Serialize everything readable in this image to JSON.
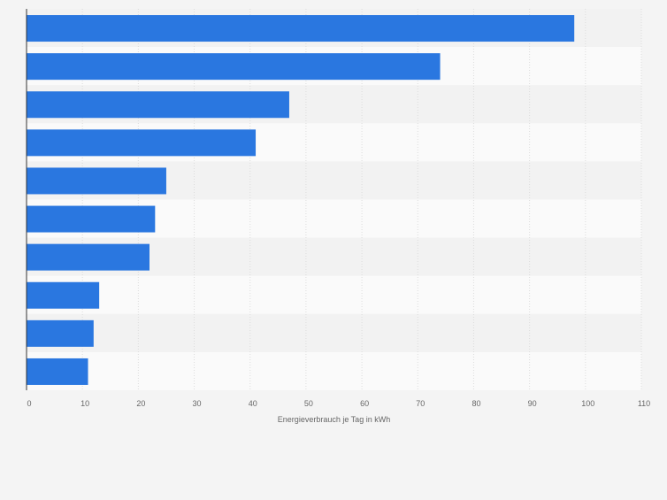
{
  "chart_data": {
    "type": "bar",
    "orientation": "horizontal",
    "categories": [
      "",
      "",
      "",
      "",
      "",
      "",
      "",
      "",
      "",
      ""
    ],
    "values": [
      98,
      74,
      47,
      41,
      25,
      23,
      22,
      13,
      12,
      11
    ],
    "xlabel": "Energieverbrauch je Tag in kWh",
    "ylabel": "",
    "xlim": [
      0,
      110
    ],
    "x_ticks": [
      "0",
      "10",
      "20",
      "30",
      "40",
      "50",
      "60",
      "70",
      "80",
      "90",
      "100",
      "110"
    ],
    "grid": true,
    "legend": "none",
    "colors": {
      "bar": "#2a77e0",
      "band_dark": "#f2f2f2",
      "band_light": "#fafafa",
      "background": "#f4f4f4",
      "gridline": "#dcdcdc",
      "axis": "#333333",
      "text": "#666666"
    }
  }
}
